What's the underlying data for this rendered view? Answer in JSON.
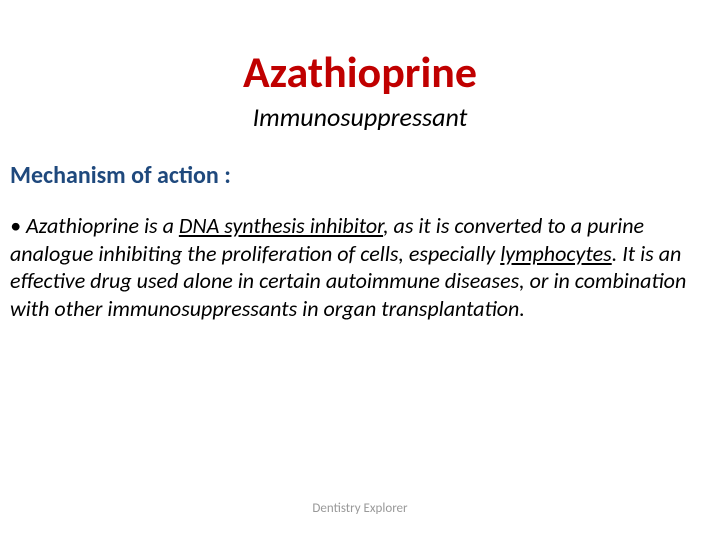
{
  "slide": {
    "title": "Azathioprine",
    "subtitle": "Immunosuppressant",
    "section_heading": "Mechanism of action :",
    "bullet_marker": "•",
    "body_part1": " Azathioprine is a ",
    "body_underline1": "DNA synthesis inhibitor",
    "body_part2": ", as it is converted to a purine analogue inhibiting the proliferation of cells, especially ",
    "body_underline2": "lymphocytes",
    "body_part3": ". It is an effective drug used alone in certain autoimmune diseases, or in combination with other immunosuppressants in organ transplantation.",
    "footer": "Dentistry Explorer"
  },
  "style": {
    "title_color": "#c00000",
    "title_fontsize": "44px",
    "subtitle_color": "#000000",
    "subtitle_fontsize": "26px",
    "section_heading_color": "#1f497d",
    "section_heading_fontsize": "24px",
    "body_color": "#000000",
    "body_fontsize": "22px",
    "footer_color": "#999999",
    "footer_fontsize": "13px",
    "background_color": "#ffffff"
  }
}
